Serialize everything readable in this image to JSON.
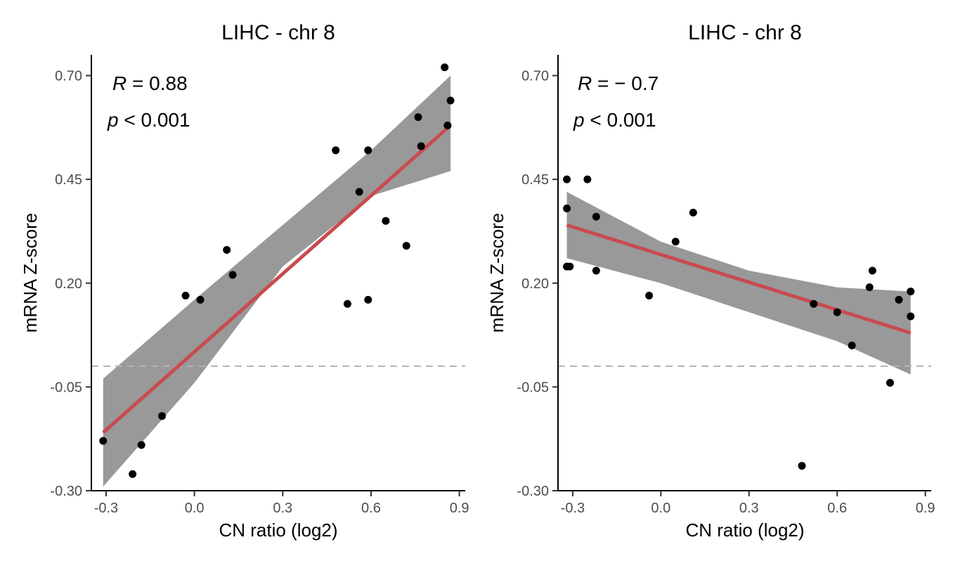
{
  "chart_data": [
    {
      "type": "scatter",
      "title": "LIHC - chr 8",
      "xlabel": "CN ratio (log2)",
      "ylabel": "mRNA Z-score",
      "xlim": [
        -0.35,
        0.92
      ],
      "ylim": [
        -0.3,
        0.75
      ],
      "xticks": [
        -0.3,
        0.0,
        0.3,
        0.6,
        0.9
      ],
      "xtick_labels": [
        "-0.3",
        "0.0",
        "0.3",
        "0.6",
        "0.9"
      ],
      "yticks": [
        -0.3,
        -0.05,
        0.2,
        0.45,
        0.7
      ],
      "ytick_labels": [
        "-0.30",
        "-0.05",
        "0.20",
        "0.45",
        "0.70"
      ],
      "hline": 0.0,
      "annotation_r": "= 0.88",
      "annotation_p": "< 0.001",
      "points": {
        "x": [
          -0.31,
          -0.21,
          -0.18,
          -0.11,
          -0.03,
          0.02,
          0.11,
          0.13,
          0.48,
          0.52,
          0.56,
          0.59,
          0.59,
          0.65,
          0.72,
          0.76,
          0.77,
          0.85,
          0.86,
          0.87
        ],
        "y": [
          -0.18,
          -0.26,
          -0.19,
          -0.12,
          0.17,
          0.16,
          0.28,
          0.22,
          0.52,
          0.15,
          0.42,
          0.16,
          0.52,
          0.35,
          0.29,
          0.6,
          0.53,
          0.72,
          0.58,
          0.64
        ]
      },
      "fit_line": {
        "x": [
          -0.31,
          0.87
        ],
        "y": [
          -0.16,
          0.58
        ],
        "color": "#c84b4f"
      },
      "confidence_band": {
        "x": [
          -0.31,
          0.0,
          0.3,
          0.6,
          0.87
        ],
        "lower": [
          -0.29,
          -0.04,
          0.24,
          0.41,
          0.47
        ],
        "upper": [
          -0.03,
          0.16,
          0.34,
          0.52,
          0.7
        ],
        "color": "#999999"
      }
    },
    {
      "type": "scatter",
      "title": "LIHC - chr 8",
      "xlabel": "CN ratio (log2)",
      "ylabel": "mRNA Z-score",
      "xlim": [
        -0.35,
        0.92
      ],
      "ylim": [
        -0.3,
        0.75
      ],
      "xticks": [
        -0.3,
        0.0,
        0.3,
        0.6,
        0.9
      ],
      "xtick_labels": [
        "-0.3",
        "0.0",
        "0.3",
        "0.6",
        "0.9"
      ],
      "yticks": [
        -0.3,
        -0.05,
        0.2,
        0.45,
        0.7
      ],
      "ytick_labels": [
        "-0.30",
        "-0.05",
        "0.20",
        "0.45",
        "0.70"
      ],
      "hline": 0.0,
      "annotation_r": "= − 0.7",
      "annotation_p": "< 0.001",
      "points": {
        "x": [
          -0.32,
          -0.32,
          -0.32,
          -0.31,
          -0.25,
          -0.22,
          -0.22,
          -0.04,
          0.05,
          0.11,
          0.48,
          0.52,
          0.6,
          0.65,
          0.71,
          0.72,
          0.78,
          0.81,
          0.85,
          0.85
        ],
        "y": [
          0.45,
          0.38,
          0.24,
          0.24,
          0.45,
          0.36,
          0.23,
          0.17,
          0.3,
          0.37,
          -0.24,
          0.15,
          0.13,
          0.05,
          0.19,
          0.23,
          -0.04,
          0.16,
          0.12,
          0.18
        ]
      },
      "fit_line": {
        "x": [
          -0.32,
          0.85
        ],
        "y": [
          0.34,
          0.08
        ],
        "color": "#c84b4f"
      },
      "confidence_band": {
        "x": [
          -0.32,
          0.0,
          0.3,
          0.6,
          0.85
        ],
        "lower": [
          0.26,
          0.2,
          0.13,
          0.06,
          -0.02
        ],
        "upper": [
          0.42,
          0.3,
          0.23,
          0.19,
          0.18
        ],
        "color": "#999999"
      }
    }
  ],
  "point_color": "#000000",
  "hline_color": "#b3b3b3"
}
